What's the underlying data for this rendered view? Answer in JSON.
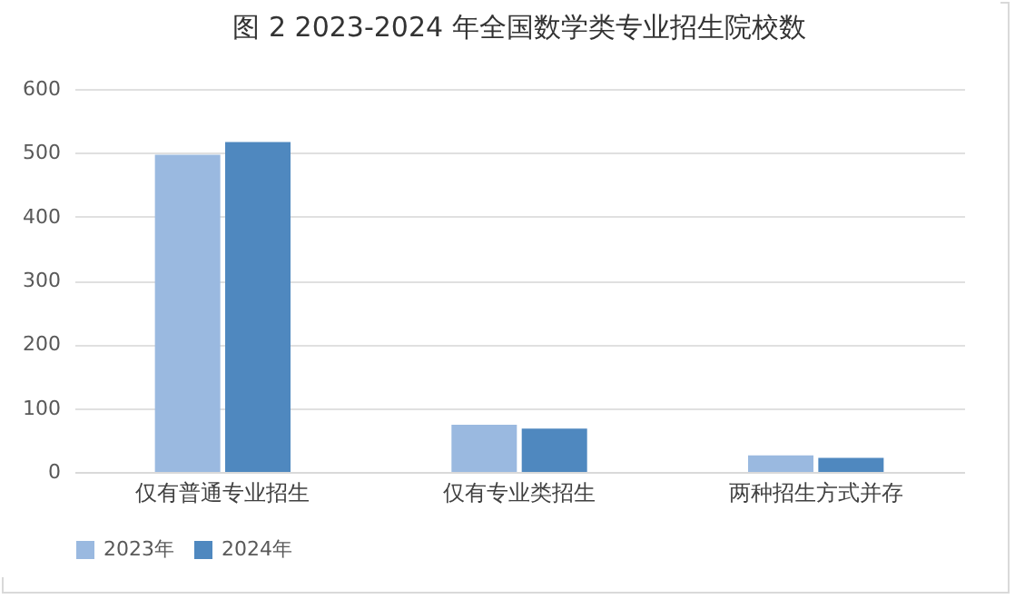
{
  "chart_data": {
    "type": "bar",
    "title": "图 2 2023-2024 年全国数学类专业招生院校数",
    "categories": [
      "仅有普通专业招生",
      "仅有专业类招生",
      "两种招生方式并存"
    ],
    "series": [
      {
        "name": "2023年",
        "color": "#9ab9e0",
        "values": [
          497,
          74,
          26
        ]
      },
      {
        "name": "2024年",
        "color": "#4f88bf",
        "values": [
          517,
          68,
          22
        ]
      }
    ],
    "ylim": [
      0,
      600
    ],
    "yticks": [
      0,
      100,
      200,
      300,
      400,
      500,
      600
    ],
    "grid": "y",
    "legend": "bottom"
  }
}
